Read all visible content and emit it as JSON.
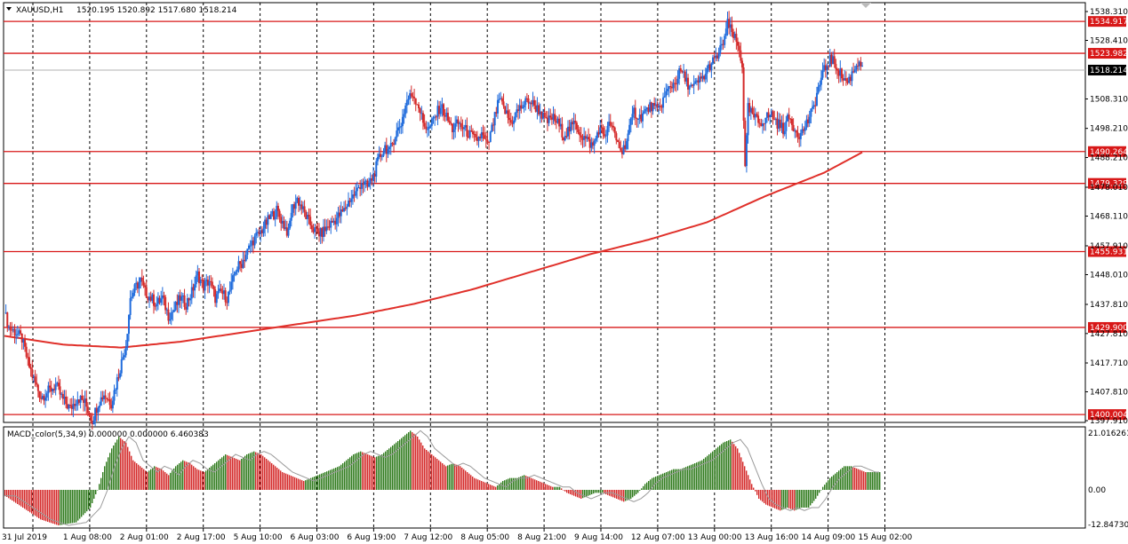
{
  "header": {
    "symbol": "XAUUSD,H1",
    "ohlc": "1520.195 1520.892 1517.680 1518.214"
  },
  "indicator": {
    "label": "MACD_color(5,34,9) 0.000000 0.000000 6.460383",
    "scale_top": "21.016261",
    "scale_zero": "0.00",
    "scale_bottom": "-12.84730"
  },
  "colors": {
    "bull": "#1f6bdc",
    "bear": "#d42a2a",
    "level_line": "#d81818",
    "ma_line": "#e0302a",
    "macd_up": "#2f7a1c",
    "macd_down": "#d42a2a",
    "signal": "#9a9a9a"
  },
  "price_axis": {
    "labels": [
      "1538.310",
      "1528.410",
      "1508.310",
      "1498.210",
      "1488.210",
      "1478.010",
      "1468.110",
      "1457.910",
      "1448.010",
      "1437.810",
      "1427.810",
      "1417.710",
      "1407.810",
      "1397.910"
    ]
  },
  "current_price": "1518.214",
  "levels": [
    {
      "label": "1534.917",
      "price": 1534.917
    },
    {
      "label": "1523.982",
      "price": 1523.982
    },
    {
      "label": "1490.264",
      "price": 1490.264
    },
    {
      "label": "1479.329",
      "price": 1479.329
    },
    {
      "label": "1455.931",
      "price": 1455.931
    },
    {
      "label": "1429.900",
      "price": 1429.9
    },
    {
      "label": "1400.004",
      "price": 1400.004
    }
  ],
  "time_axis": [
    "31 Jul 2019",
    "1 Aug 08:00",
    "2 Aug 01:00",
    "2 Aug 17:00",
    "5 Aug 10:00",
    "6 Aug 03:00",
    "6 Aug 19:00",
    "7 Aug 12:00",
    "8 Aug 05:00",
    "8 Aug 21:00",
    "9 Aug 14:00",
    "12 Aug 07:00",
    "13 Aug 00:00",
    "13 Aug 16:00",
    "14 Aug 09:00",
    "15 Aug 02:00"
  ],
  "chart_data": {
    "type": "candlestick",
    "symbol": "XAUUSD",
    "timeframe": "H1",
    "y_range": [
      1397.91,
      1538.31
    ],
    "price_path": [
      [
        0,
        1435
      ],
      [
        3,
        1430
      ],
      [
        8,
        1428
      ],
      [
        12,
        1426
      ],
      [
        16,
        1418
      ],
      [
        20,
        1412
      ],
      [
        25,
        1406
      ],
      [
        30,
        1408
      ],
      [
        35,
        1410
      ],
      [
        40,
        1405
      ],
      [
        45,
        1402
      ],
      [
        50,
        1406
      ],
      [
        55,
        1404
      ],
      [
        60,
        1398
      ],
      [
        64,
        1404
      ],
      [
        68,
        1407
      ],
      [
        73,
        1404
      ],
      [
        76,
        1410
      ],
      [
        80,
        1418
      ],
      [
        83,
        1424
      ],
      [
        86,
        1440
      ],
      [
        90,
        1444
      ],
      [
        93,
        1446
      ],
      [
        96,
        1442
      ],
      [
        100,
        1440
      ],
      [
        104,
        1438
      ],
      [
        108,
        1440
      ],
      [
        112,
        1434
      ],
      [
        116,
        1436
      ],
      [
        120,
        1440
      ],
      [
        124,
        1438
      ],
      [
        128,
        1442
      ],
      [
        132,
        1448
      ],
      [
        136,
        1444
      ],
      [
        140,
        1446
      ],
      [
        144,
        1440
      ],
      [
        148,
        1442
      ],
      [
        152,
        1440
      ],
      [
        155,
        1444
      ],
      [
        158,
        1450
      ],
      [
        162,
        1452
      ],
      [
        166,
        1456
      ],
      [
        170,
        1460
      ],
      [
        174,
        1462
      ],
      [
        178,
        1465
      ],
      [
        182,
        1468
      ],
      [
        186,
        1470
      ],
      [
        190,
        1466
      ],
      [
        194,
        1462
      ],
      [
        196,
        1470
      ],
      [
        200,
        1474
      ],
      [
        204,
        1470
      ],
      [
        208,
        1466
      ],
      [
        212,
        1463
      ],
      [
        216,
        1462
      ],
      [
        220,
        1464
      ],
      [
        224,
        1466
      ],
      [
        228,
        1468
      ],
      [
        232,
        1470
      ],
      [
        236,
        1474
      ],
      [
        240,
        1476
      ],
      [
        244,
        1480
      ],
      [
        248,
        1478
      ],
      [
        252,
        1482
      ],
      [
        256,
        1488
      ],
      [
        260,
        1492
      ],
      [
        263,
        1490
      ],
      [
        267,
        1496
      ],
      [
        271,
        1500
      ],
      [
        275,
        1508
      ],
      [
        279,
        1510
      ],
      [
        283,
        1506
      ],
      [
        286,
        1500
      ],
      [
        290,
        1498
      ],
      [
        294,
        1502
      ],
      [
        298,
        1506
      ],
      [
        302,
        1502
      ],
      [
        306,
        1498
      ],
      [
        310,
        1500
      ],
      [
        314,
        1498
      ],
      [
        318,
        1496
      ],
      [
        322,
        1494
      ],
      [
        326,
        1496
      ],
      [
        330,
        1492
      ],
      [
        334,
        1500
      ],
      [
        338,
        1508
      ],
      [
        342,
        1504
      ],
      [
        346,
        1500
      ],
      [
        350,
        1504
      ],
      [
        354,
        1506
      ],
      [
        358,
        1508
      ],
      [
        362,
        1506
      ],
      [
        366,
        1504
      ],
      [
        370,
        1500
      ],
      [
        374,
        1502
      ],
      [
        378,
        1500
      ],
      [
        382,
        1496
      ],
      [
        386,
        1498
      ],
      [
        390,
        1500
      ],
      [
        394,
        1496
      ],
      [
        398,
        1494
      ],
      [
        402,
        1492
      ],
      [
        406,
        1498
      ],
      [
        410,
        1496
      ],
      [
        414,
        1500
      ],
      [
        418,
        1494
      ],
      [
        422,
        1490
      ],
      [
        426,
        1496
      ],
      [
        430,
        1504
      ],
      [
        434,
        1502
      ],
      [
        438,
        1504
      ],
      [
        442,
        1506
      ],
      [
        446,
        1504
      ],
      [
        450,
        1508
      ],
      [
        454,
        1512
      ],
      [
        458,
        1514
      ],
      [
        462,
        1518
      ],
      [
        466,
        1514
      ],
      [
        470,
        1512
      ],
      [
        474,
        1514
      ],
      [
        478,
        1516
      ],
      [
        482,
        1520
      ],
      [
        486,
        1522
      ],
      [
        490,
        1526
      ],
      [
        494,
        1534
      ],
      [
        498,
        1530
      ],
      [
        502,
        1525
      ],
      [
        504,
        1520
      ],
      [
        506,
        1484
      ],
      [
        508,
        1505
      ],
      [
        512,
        1502
      ],
      [
        516,
        1500
      ],
      [
        520,
        1502
      ],
      [
        524,
        1503
      ],
      [
        528,
        1500
      ],
      [
        532,
        1498
      ],
      [
        536,
        1502
      ],
      [
        540,
        1498
      ],
      [
        544,
        1496
      ],
      [
        548,
        1500
      ],
      [
        552,
        1504
      ],
      [
        556,
        1512
      ],
      [
        560,
        1518
      ],
      [
        564,
        1522
      ],
      [
        568,
        1520
      ],
      [
        572,
        1516
      ],
      [
        576,
        1514
      ],
      [
        580,
        1518
      ],
      [
        584,
        1522
      ],
      [
        586,
        1518
      ]
    ],
    "ma_line": [
      [
        0,
        1427
      ],
      [
        40,
        1424
      ],
      [
        80,
        1423
      ],
      [
        120,
        1425
      ],
      [
        160,
        1428
      ],
      [
        200,
        1431
      ],
      [
        240,
        1434
      ],
      [
        280,
        1438
      ],
      [
        320,
        1443
      ],
      [
        360,
        1449
      ],
      [
        400,
        1455
      ],
      [
        440,
        1460
      ],
      [
        480,
        1466
      ],
      [
        520,
        1475
      ],
      [
        560,
        1483
      ],
      [
        586,
        1490
      ]
    ],
    "macd_histogram_path": [
      [
        0,
        -2
      ],
      [
        10,
        -6
      ],
      [
        20,
        -10
      ],
      [
        30,
        -12
      ],
      [
        40,
        -11
      ],
      [
        48,
        -6
      ],
      [
        52,
        0
      ],
      [
        56,
        8
      ],
      [
        60,
        14
      ],
      [
        64,
        18
      ],
      [
        68,
        16
      ],
      [
        72,
        10
      ],
      [
        76,
        8
      ],
      [
        80,
        6
      ],
      [
        84,
        8
      ],
      [
        88,
        7
      ],
      [
        92,
        5
      ],
      [
        96,
        8
      ],
      [
        100,
        10
      ],
      [
        104,
        9
      ],
      [
        108,
        7
      ],
      [
        112,
        6
      ],
      [
        116,
        8
      ],
      [
        120,
        10
      ],
      [
        124,
        12
      ],
      [
        128,
        11
      ],
      [
        132,
        10
      ],
      [
        136,
        12
      ],
      [
        140,
        13
      ],
      [
        144,
        12
      ],
      [
        148,
        10
      ],
      [
        152,
        8
      ],
      [
        156,
        6
      ],
      [
        160,
        5
      ],
      [
        164,
        4
      ],
      [
        168,
        3
      ],
      [
        172,
        4
      ],
      [
        176,
        5
      ],
      [
        180,
        6
      ],
      [
        184,
        7
      ],
      [
        188,
        8
      ],
      [
        192,
        10
      ],
      [
        196,
        12
      ],
      [
        200,
        13
      ],
      [
        204,
        12
      ],
      [
        208,
        11
      ],
      [
        212,
        12
      ],
      [
        216,
        14
      ],
      [
        220,
        16
      ],
      [
        224,
        18
      ],
      [
        228,
        20
      ],
      [
        232,
        18
      ],
      [
        236,
        14
      ],
      [
        240,
        12
      ],
      [
        244,
        10
      ],
      [
        248,
        8
      ],
      [
        252,
        9
      ],
      [
        256,
        8
      ],
      [
        260,
        6
      ],
      [
        264,
        4
      ],
      [
        268,
        3
      ],
      [
        272,
        2
      ],
      [
        276,
        1
      ],
      [
        280,
        3
      ],
      [
        284,
        4
      ],
      [
        288,
        4
      ],
      [
        292,
        5
      ],
      [
        296,
        4
      ],
      [
        300,
        3
      ],
      [
        304,
        2
      ],
      [
        308,
        1
      ],
      [
        312,
        1
      ],
      [
        316,
        -1
      ],
      [
        320,
        -2
      ],
      [
        324,
        -3
      ],
      [
        328,
        -2
      ],
      [
        332,
        -1
      ],
      [
        336,
        -1
      ],
      [
        340,
        -2
      ],
      [
        344,
        -3
      ],
      [
        348,
        -4
      ],
      [
        352,
        -3
      ],
      [
        356,
        -1
      ],
      [
        360,
        2
      ],
      [
        364,
        4
      ],
      [
        368,
        5
      ],
      [
        372,
        6
      ],
      [
        376,
        7
      ],
      [
        380,
        7
      ],
      [
        384,
        8
      ],
      [
        388,
        9
      ],
      [
        392,
        10
      ],
      [
        396,
        12
      ],
      [
        400,
        14
      ],
      [
        404,
        16
      ],
      [
        408,
        17
      ],
      [
        412,
        14
      ],
      [
        416,
        8
      ],
      [
        420,
        2
      ],
      [
        424,
        -3
      ],
      [
        428,
        -5
      ],
      [
        432,
        -6
      ],
      [
        436,
        -7
      ],
      [
        440,
        -6
      ],
      [
        444,
        -7
      ],
      [
        448,
        -6
      ],
      [
        452,
        -6
      ],
      [
        456,
        -3
      ],
      [
        460,
        1
      ],
      [
        464,
        4
      ],
      [
        468,
        6
      ],
      [
        472,
        8
      ],
      [
        476,
        8
      ],
      [
        480,
        7
      ],
      [
        484,
        6
      ],
      [
        488,
        6
      ],
      [
        492,
        6
      ]
    ]
  }
}
